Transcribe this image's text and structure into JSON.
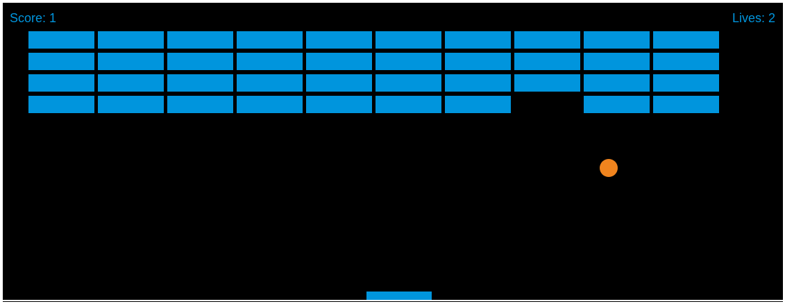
{
  "hud": {
    "score_text": "Score: 1",
    "lives_text": "Lives: 2",
    "score": 1,
    "lives": 2
  },
  "colors": {
    "background": "#000000",
    "brick": "#0095DD",
    "paddle": "#0095DD",
    "ball": "#F0841E",
    "hud_text": "#0095DD"
  },
  "bricks": {
    "rows": 4,
    "columns": 10,
    "status": [
      [
        1,
        1,
        1,
        1,
        1,
        1,
        1,
        1,
        1,
        1
      ],
      [
        1,
        1,
        1,
        1,
        1,
        1,
        1,
        1,
        1,
        1
      ],
      [
        1,
        1,
        1,
        1,
        1,
        1,
        1,
        1,
        1,
        1
      ],
      [
        1,
        1,
        1,
        1,
        1,
        1,
        1,
        0,
        1,
        1
      ]
    ]
  }
}
